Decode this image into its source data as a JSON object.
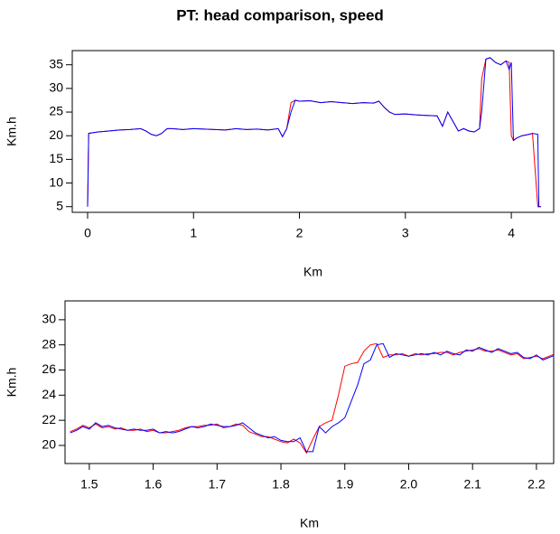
{
  "title": "PT: head comparison, speed",
  "chart_data": [
    {
      "type": "line",
      "xlabel": "Km",
      "ylabel": "Km.h",
      "xlim": [
        -0.145,
        4.4
      ],
      "ylim": [
        3.8,
        38.0
      ],
      "xticks": [
        0,
        1,
        2,
        3,
        4
      ],
      "yticks": [
        5,
        10,
        15,
        20,
        25,
        30,
        35
      ],
      "x": [
        0,
        0.01,
        0.1,
        0.2,
        0.3,
        0.4,
        0.5,
        0.55,
        0.6,
        0.65,
        0.7,
        0.75,
        0.8,
        0.9,
        1.0,
        1.1,
        1.2,
        1.3,
        1.4,
        1.5,
        1.6,
        1.7,
        1.8,
        1.84,
        1.88,
        1.92,
        1.96,
        2.0,
        2.1,
        2.2,
        2.3,
        2.4,
        2.5,
        2.6,
        2.7,
        2.75,
        2.8,
        2.85,
        2.9,
        3.0,
        3.1,
        3.2,
        3.3,
        3.35,
        3.4,
        3.45,
        3.5,
        3.55,
        3.6,
        3.65,
        3.7,
        3.72,
        3.76,
        3.8,
        3.85,
        3.9,
        3.95,
        3.98,
        4.0,
        4.02,
        4.05,
        4.1,
        4.15,
        4.2,
        4.25,
        4.26,
        4.28
      ],
      "series": [
        {
          "color": "#ff0000",
          "values": [
            5,
            20.5,
            20.8,
            21,
            21.2,
            21.3,
            21.5,
            21,
            20.3,
            20,
            20.5,
            21.5,
            21.5,
            21.3,
            21.5,
            21.4,
            21.3,
            21.2,
            21.5,
            21.3,
            21.4,
            21.2,
            21.5,
            19.8,
            21.5,
            27,
            27.5,
            27.3,
            27.4,
            27,
            27.2,
            27,
            26.8,
            27,
            26.9,
            27.3,
            26,
            25,
            24.5,
            24.6,
            24.4,
            24.3,
            24.2,
            22,
            25,
            23,
            21,
            21.5,
            21,
            20.8,
            21.5,
            32,
            36.2,
            36.5,
            35.5,
            35,
            35.8,
            35.5,
            20,
            19,
            19.5,
            20,
            20.2,
            20.5,
            5,
            5,
            5
          ]
        },
        {
          "color": "#0000ff",
          "values": [
            5,
            20.5,
            20.8,
            21,
            21.2,
            21.3,
            21.5,
            21,
            20.3,
            20,
            20.5,
            21.5,
            21.5,
            21.3,
            21.5,
            21.4,
            21.3,
            21.2,
            21.5,
            21.3,
            21.4,
            21.2,
            21.5,
            19.8,
            21.5,
            25,
            27.5,
            27.3,
            27.4,
            27,
            27.2,
            27,
            26.8,
            27,
            26.9,
            27.3,
            26,
            25,
            24.5,
            24.6,
            24.4,
            24.3,
            24.2,
            22,
            25,
            23,
            21,
            21.5,
            21,
            20.8,
            21.5,
            25,
            36.2,
            36.5,
            35.5,
            35,
            35.8,
            34,
            35.5,
            19,
            19.5,
            20,
            20.2,
            20.5,
            20.3,
            5,
            5
          ]
        }
      ]
    },
    {
      "type": "line",
      "xlabel": "Km",
      "ylabel": "Km.h",
      "xlim": [
        1.462,
        2.227
      ],
      "ylim": [
        18.56,
        31.5
      ],
      "xticks": [
        1.5,
        1.6,
        1.7,
        1.8,
        1.9,
        {
          "value": 2,
          "label": "2.0"
        },
        2.1,
        2.2
      ],
      "yticks": [
        20,
        22,
        24,
        26,
        28,
        30
      ],
      "x": [
        1.47,
        1.48,
        1.49,
        1.5,
        1.51,
        1.52,
        1.53,
        1.54,
        1.55,
        1.56,
        1.57,
        1.58,
        1.59,
        1.6,
        1.61,
        1.62,
        1.63,
        1.64,
        1.65,
        1.66,
        1.67,
        1.68,
        1.69,
        1.7,
        1.71,
        1.72,
        1.73,
        1.74,
        1.75,
        1.76,
        1.77,
        1.78,
        1.79,
        1.8,
        1.81,
        1.82,
        1.83,
        1.84,
        1.85,
        1.86,
        1.87,
        1.88,
        1.89,
        1.9,
        1.91,
        1.92,
        1.93,
        1.94,
        1.95,
        1.96,
        1.97,
        1.98,
        1.99,
        2.0,
        2.01,
        2.02,
        2.03,
        2.04,
        2.05,
        2.06,
        2.07,
        2.08,
        2.09,
        2.1,
        2.11,
        2.12,
        2.13,
        2.14,
        2.15,
        2.16,
        2.17,
        2.18,
        2.19,
        2.2,
        2.21,
        2.22,
        2.23
      ],
      "series": [
        {
          "color": "#ff0000",
          "values": [
            21.1,
            21.3,
            21.6,
            21.4,
            21.7,
            21.4,
            21.5,
            21.3,
            21.4,
            21.2,
            21.2,
            21.3,
            21.1,
            21.2,
            21.0,
            21.0,
            21.1,
            21.2,
            21.4,
            21.5,
            21.5,
            21.6,
            21.6,
            21.7,
            21.4,
            21.5,
            21.7,
            21.6,
            21.1,
            20.9,
            20.7,
            20.7,
            20.5,
            20.3,
            20.2,
            20.5,
            20.2,
            19.4,
            20.5,
            21.5,
            21.8,
            22.0,
            24.0,
            26.3,
            26.5,
            26.6,
            27.5,
            28.0,
            28.1,
            27.0,
            27.2,
            27.2,
            27.3,
            27.1,
            27.3,
            27.2,
            27.3,
            27.3,
            27.4,
            27.4,
            27.2,
            27.4,
            27.5,
            27.6,
            27.7,
            27.5,
            27.5,
            27.6,
            27.4,
            27.2,
            27.3,
            26.9,
            27.0,
            27.1,
            26.9,
            27.1,
            27.3
          ]
        },
        {
          "color": "#0000ff",
          "values": [
            21.0,
            21.2,
            21.5,
            21.3,
            21.8,
            21.5,
            21.6,
            21.4,
            21.3,
            21.2,
            21.3,
            21.2,
            21.2,
            21.3,
            21.0,
            21.1,
            21.0,
            21.1,
            21.3,
            21.5,
            21.4,
            21.5,
            21.7,
            21.6,
            21.5,
            21.5,
            21.6,
            21.8,
            21.4,
            21.0,
            20.8,
            20.6,
            20.7,
            20.4,
            20.3,
            20.3,
            20.6,
            19.5,
            19.5,
            21.5,
            21.0,
            21.5,
            21.8,
            22.2,
            23.5,
            24.8,
            26.5,
            26.8,
            28.0,
            28.1,
            27.0,
            27.3,
            27.2,
            27.1,
            27.2,
            27.3,
            27.2,
            27.4,
            27.2,
            27.5,
            27.3,
            27.2,
            27.6,
            27.5,
            27.8,
            27.6,
            27.4,
            27.7,
            27.5,
            27.3,
            27.4,
            27.0,
            26.9,
            27.2,
            26.8,
            27.0,
            27.2
          ]
        }
      ]
    }
  ]
}
